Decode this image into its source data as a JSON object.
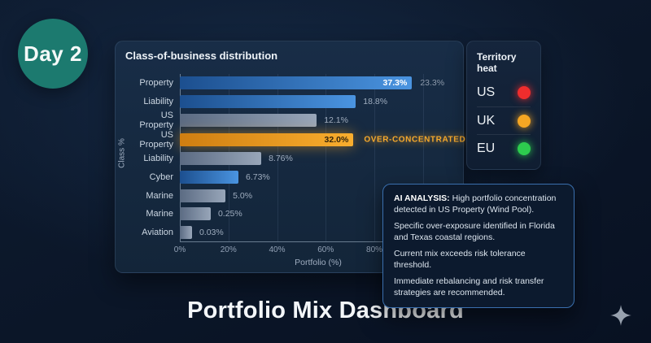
{
  "badge": {
    "label": "Day 2"
  },
  "footer": {
    "title": "Portfolio Mix Dashboard",
    "icon": "sparkle-icon"
  },
  "colors": {
    "badge_bg": "#1c7a6f",
    "bar_blue_start": "#1c4f8f",
    "bar_blue_end": "#4a94e0",
    "bar_gray_start": "#5b6b83",
    "bar_gray_end": "#98a6b9",
    "bar_orange_start": "#cf7e11",
    "bar_orange_end": "#f9ae2e",
    "annotation_orange": "#f6a92c",
    "ai_border_blue": "#3a6fae",
    "dot_red": "#ef2d2d",
    "dot_amber": "#f5a623",
    "dot_green": "#2dcc4e"
  },
  "chart_data": {
    "type": "bar",
    "orientation": "horizontal",
    "title": "Class-of-business distribution",
    "xlabel": "Portfolio (%)",
    "ylabel": "Class %",
    "grid": true,
    "axis_max_pct": 113.8,
    "gridlines_pct": [
      20,
      40,
      60,
      80,
      100
    ],
    "x_ticks": [
      {
        "label": "0%",
        "pct": 0
      },
      {
        "label": "20%",
        "pct": 20
      },
      {
        "label": "40%",
        "pct": 40
      },
      {
        "label": "60%",
        "pct": 60
      },
      {
        "label": "80%",
        "pct": 80
      }
    ],
    "rows": [
      {
        "label": "Property",
        "value": 37.3,
        "value_label": "37.3%",
        "style": "blue",
        "label_placement": "inside",
        "extra_label": "23.3%",
        "bar_pct": 95.5
      },
      {
        "label": "Liability",
        "value": 18.8,
        "value_label": "18.8%",
        "style": "blue",
        "label_placement": "outside",
        "bar_pct": 72.4
      },
      {
        "label": "US Property",
        "value": 12.1,
        "value_label": "12.1%",
        "style": "gray",
        "label_placement": "outside",
        "bar_pct": 56.3
      },
      {
        "label": "US Property",
        "value": 32.0,
        "value_label": "32.0%",
        "style": "orange",
        "label_placement": "inside",
        "annotation": "OVER-CONCENTRATED",
        "bar_pct": 71.4
      },
      {
        "label": "Liability",
        "value": 8.76,
        "value_label": "8.76%",
        "style": "gray",
        "label_placement": "outside",
        "bar_pct": 33.5
      },
      {
        "label": "Cyber",
        "value": 6.73,
        "value_label": "6.73%",
        "style": "blue",
        "label_placement": "outside",
        "bar_pct": 24.1
      },
      {
        "label": "Marine",
        "value": 5.0,
        "value_label": "5.0%",
        "style": "gray",
        "label_placement": "outside",
        "bar_pct": 18.8
      },
      {
        "label": "Marine",
        "value": 0.25,
        "value_label": "0.25%",
        "style": "gray",
        "label_placement": "outside",
        "bar_pct": 12.7
      },
      {
        "label": "Aviation",
        "value": 0.03,
        "value_label": "0.03%",
        "style": "gray",
        "label_placement": "outside",
        "bar_pct": 5.0
      }
    ]
  },
  "territory": {
    "title": "Territory heat",
    "rows": [
      {
        "label": "US",
        "status_color": "#ef2d2d",
        "status": "red"
      },
      {
        "label": "UK",
        "status_color": "#f5a623",
        "status": "amber"
      },
      {
        "label": "EU",
        "status_color": "#2dcc4e",
        "status": "green"
      }
    ]
  },
  "ai_panel": {
    "heading": "AI ANALYSIS:",
    "intro": " High portfolio concentration detected in US Property (Wind Pool).",
    "paragraphs": [
      "Specific over-exposure identified in Florida and Texas coastal regions.",
      "Current mix exceeds risk tolerance threshold.",
      "Immediate rebalancing and risk transfer strategies are recommended."
    ]
  }
}
